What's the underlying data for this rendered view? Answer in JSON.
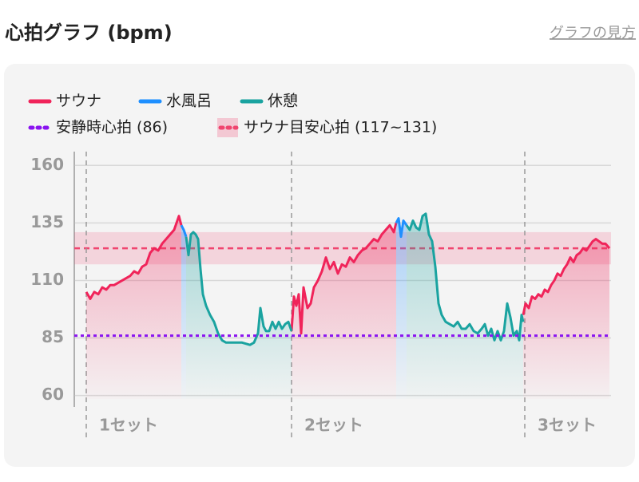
{
  "header": {
    "title": "心拍グラフ (bpm)",
    "link": "グラフの見方"
  },
  "chart_data": {
    "type": "line",
    "xlim": [
      0,
      672
    ],
    "ylim": [
      55,
      166
    ],
    "yticks": [
      60,
      85,
      110,
      135,
      160
    ],
    "grid": true,
    "series": [
      {
        "name": "サウナ",
        "color": "#f0245a",
        "x": [
          15,
          20,
          25,
          30,
          35,
          40,
          45,
          50,
          55,
          60,
          65,
          70,
          75,
          80,
          85,
          90,
          95,
          100,
          105,
          110,
          115,
          120,
          125,
          128,
          131,
          134,
          null,
          272,
          275,
          278,
          281,
          284,
          287,
          292,
          296,
          300,
          305,
          310,
          315,
          320,
          325,
          330,
          335,
          340,
          345,
          350,
          355,
          360,
          365,
          370,
          375,
          380,
          385,
          390,
          395,
          400,
          403,
          null,
          562,
          565,
          569,
          573,
          577,
          581,
          585,
          589,
          593,
          597,
          601,
          605,
          609,
          613,
          617,
          621,
          625,
          629,
          633,
          637,
          641,
          645,
          649,
          653,
          657,
          661,
          665,
          670
        ],
        "values": [
          105,
          102,
          105,
          104,
          107,
          106,
          108,
          108,
          109,
          110,
          111,
          112,
          114,
          113,
          116,
          117,
          122,
          124,
          123,
          126,
          128,
          130,
          132,
          135,
          138,
          134,
          null,
          88,
          103,
          99,
          104,
          87,
          107,
          98,
          100,
          107,
          110,
          114,
          120,
          115,
          118,
          113,
          117,
          116,
          120,
          118,
          121,
          123,
          124,
          126,
          128,
          127,
          130,
          132,
          134,
          131,
          135,
          null,
          95,
          100,
          98,
          103,
          102,
          104,
          103,
          106,
          105,
          108,
          110,
          113,
          112,
          115,
          117,
          120,
          118,
          121,
          122,
          124,
          123,
          125,
          127,
          128,
          127,
          126,
          126,
          124
        ]
      },
      {
        "name": "水風呂",
        "color": "#1e8fff",
        "x": [
          134,
          137,
          140,
          null,
          403,
          406,
          409,
          412,
          416
        ],
        "values": [
          134,
          132,
          129,
          null,
          135,
          137,
          129,
          136,
          134
        ]
      },
      {
        "name": "休憩",
        "color": "#1aa3a0",
        "x": [
          140,
          143,
          146,
          149,
          152,
          155,
          158,
          161,
          165,
          170,
          175,
          180,
          185,
          190,
          200,
          210,
          220,
          225,
          230,
          233,
          237,
          240,
          244,
          248,
          252,
          256,
          260,
          264,
          268,
          272,
          null,
          416,
          420,
          424,
          428,
          432,
          436,
          440,
          444,
          448,
          452,
          456,
          460,
          465,
          470,
          475,
          480,
          485,
          490,
          495,
          500,
          505,
          510,
          514,
          518,
          522,
          526,
          530,
          534,
          538,
          542,
          546,
          550,
          554,
          557,
          560,
          562
        ],
        "values": [
          129,
          121,
          130,
          131,
          130,
          128,
          115,
          104,
          99,
          95,
          92,
          87,
          84,
          83,
          83,
          83,
          82,
          83,
          87,
          98,
          90,
          88,
          88,
          92,
          89,
          92,
          89,
          91,
          92,
          88,
          null,
          134,
          132,
          136,
          133,
          132,
          138,
          139,
          130,
          127,
          116,
          100,
          95,
          92,
          91,
          90,
          92,
          89,
          89,
          91,
          88,
          87,
          89,
          91,
          86,
          89,
          84,
          88,
          84,
          88,
          100,
          94,
          86,
          88,
          84,
          95,
          92
        ]
      }
    ],
    "resting": {
      "label": "安静時心拍 (86)",
      "value": 86,
      "color": "#8a14f0"
    },
    "target": {
      "label": "サウナ目安心拍 (117~131)",
      "range": [
        117,
        131
      ],
      "color": "#f0456f"
    },
    "sets": [
      {
        "label": "1セット",
        "x": 15
      },
      {
        "label": "2セット",
        "x": 272
      },
      {
        "label": "3セット",
        "x": 564
      }
    ]
  }
}
